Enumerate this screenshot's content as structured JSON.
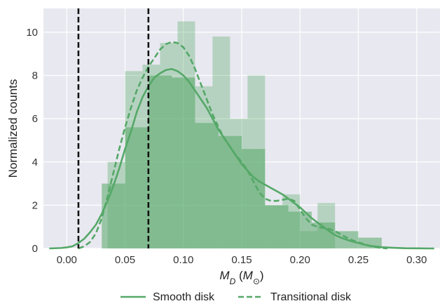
{
  "chart_data": {
    "type": "histogram",
    "xlabel": "M_D (M_⊙)",
    "xlabel_main": "M",
    "xlabel_main_sub": "D",
    "xlabel_paren_open": " (",
    "xlabel_paren_main": "M",
    "xlabel_paren_sub": "⊙",
    "xlabel_paren_close": ")",
    "ylabel": "Normalized counts",
    "xlim": [
      -0.02,
      0.32
    ],
    "ylim": [
      0,
      11.1
    ],
    "xticks": [
      0.0,
      0.05,
      0.1,
      0.15,
      0.2,
      0.25,
      0.3
    ],
    "xtick_labels": [
      "0.00",
      "0.05",
      "0.10",
      "0.15",
      "0.20",
      "0.25",
      "0.30"
    ],
    "yticks": [
      0,
      2,
      4,
      6,
      8,
      10
    ],
    "ytick_labels": [
      "0",
      "2",
      "4",
      "6",
      "8",
      "10"
    ],
    "grid": true,
    "background": "#e8e8f0",
    "color": "#55a868",
    "legend_position": "bottom-center",
    "vlines": [
      0.01,
      0.07
    ],
    "series": [
      {
        "name": "Smooth disk",
        "line_style": "solid",
        "hist_bin_edges": [
          0.03,
          0.05,
          0.07,
          0.09,
          0.11,
          0.13,
          0.15,
          0.17,
          0.19,
          0.21,
          0.23,
          0.25,
          0.27
        ],
        "hist_values": [
          3.0,
          5.6,
          8.0,
          7.9,
          5.8,
          5.2,
          4.6,
          2.0,
          1.7,
          1.2,
          0.8,
          0.5
        ],
        "kde_x": [
          -0.015,
          -0.005,
          0.0,
          0.005,
          0.01,
          0.015,
          0.02,
          0.025,
          0.03,
          0.035,
          0.04,
          0.045,
          0.05,
          0.055,
          0.06,
          0.065,
          0.07,
          0.075,
          0.08,
          0.085,
          0.09,
          0.095,
          0.1,
          0.105,
          0.11,
          0.115,
          0.12,
          0.125,
          0.13,
          0.135,
          0.14,
          0.145,
          0.15,
          0.155,
          0.16,
          0.165,
          0.17,
          0.175,
          0.18,
          0.185,
          0.19,
          0.195,
          0.2,
          0.205,
          0.21,
          0.215,
          0.22,
          0.225,
          0.23,
          0.235,
          0.24,
          0.245,
          0.25,
          0.255,
          0.26,
          0.27,
          0.28,
          0.29,
          0.3,
          0.31,
          0.315
        ],
        "kde_y": [
          0.0,
          0.02,
          0.05,
          0.1,
          0.25,
          0.45,
          0.75,
          1.1,
          1.6,
          2.2,
          2.9,
          3.7,
          4.6,
          5.4,
          6.3,
          7.0,
          7.5,
          7.9,
          8.1,
          8.25,
          8.3,
          8.2,
          8.0,
          7.7,
          7.3,
          6.9,
          6.5,
          6.0,
          5.5,
          5.1,
          4.7,
          4.3,
          3.9,
          3.6,
          3.3,
          3.1,
          2.95,
          2.8,
          2.65,
          2.5,
          2.3,
          2.1,
          1.9,
          1.65,
          1.4,
          1.2,
          1.0,
          0.8,
          0.62,
          0.5,
          0.4,
          0.32,
          0.25,
          0.18,
          0.12,
          0.06,
          0.03,
          0.01,
          0.005,
          0.0,
          0.0
        ]
      },
      {
        "name": "Transitional disk",
        "line_style": "dashed",
        "hist_bin_edges": [
          0.035,
          0.05,
          0.065,
          0.08,
          0.095,
          0.11,
          0.125,
          0.14,
          0.155,
          0.17,
          0.185,
          0.2,
          0.215,
          0.23
        ],
        "hist_values": [
          4.0,
          8.2,
          8.5,
          9.5,
          10.5,
          7.5,
          9.8,
          6.0,
          8.0,
          2.0,
          2.5,
          0.8,
          2.1
        ],
        "kde_x": [
          0.01,
          0.015,
          0.02,
          0.025,
          0.03,
          0.035,
          0.04,
          0.045,
          0.05,
          0.055,
          0.06,
          0.065,
          0.07,
          0.075,
          0.08,
          0.085,
          0.09,
          0.095,
          0.1,
          0.105,
          0.11,
          0.115,
          0.12,
          0.125,
          0.13,
          0.135,
          0.14,
          0.145,
          0.15,
          0.155,
          0.16,
          0.165,
          0.17,
          0.175,
          0.18,
          0.185,
          0.19,
          0.195,
          0.2,
          0.205,
          0.21,
          0.215,
          0.22,
          0.225,
          0.23,
          0.235,
          0.24,
          0.245,
          0.25,
          0.255,
          0.26,
          0.265,
          0.27,
          0.275
        ],
        "kde_y": [
          0.0,
          0.1,
          0.3,
          0.7,
          1.4,
          2.4,
          3.5,
          4.6,
          5.6,
          6.5,
          7.3,
          7.9,
          8.4,
          8.8,
          9.2,
          9.45,
          9.55,
          9.5,
          9.3,
          8.9,
          8.3,
          7.6,
          6.9,
          6.2,
          5.6,
          5.1,
          4.7,
          4.3,
          4.0,
          3.6,
          3.1,
          2.6,
          2.3,
          2.2,
          2.2,
          2.25,
          2.3,
          2.2,
          1.8,
          1.4,
          1.1,
          1.0,
          0.95,
          0.9,
          0.8,
          0.65,
          0.5,
          0.38,
          0.28,
          0.2,
          0.12,
          0.06,
          0.02,
          0.0
        ]
      }
    ]
  }
}
